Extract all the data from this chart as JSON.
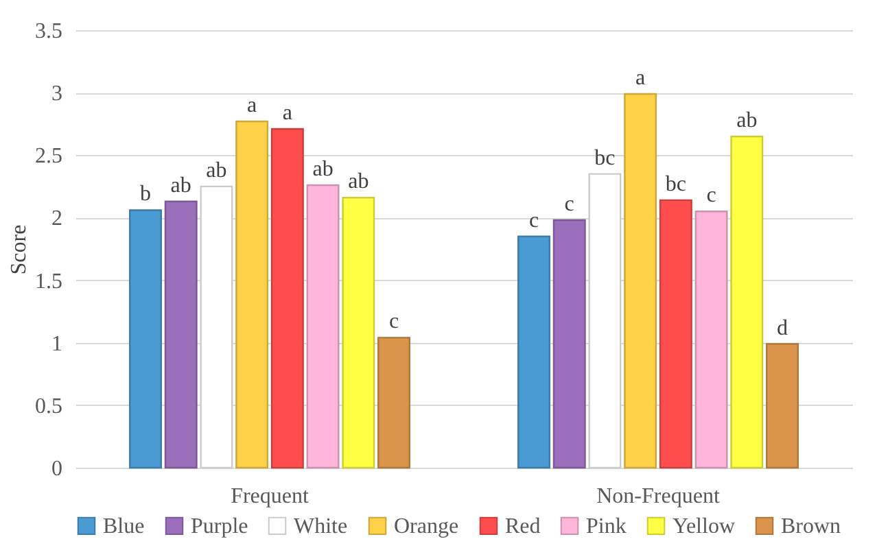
{
  "chart_data": {
    "type": "bar",
    "ylabel": "Score",
    "categories": [
      "Frequent",
      "Non-Frequent"
    ],
    "series": [
      {
        "name": "Blue",
        "color": "#4a9bd4",
        "values": [
          2.06,
          1.85
        ],
        "value_labels": [
          "b",
          "c"
        ]
      },
      {
        "name": "Purple",
        "color": "#9b6fbb",
        "values": [
          2.13,
          1.98
        ],
        "value_labels": [
          "ab",
          "c"
        ]
      },
      {
        "name": "White",
        "color": "#ffffff",
        "values": [
          2.25,
          2.35
        ],
        "value_labels": [
          "ab",
          "bc"
        ]
      },
      {
        "name": "Orange",
        "color": "#ffd149",
        "values": [
          2.77,
          2.99
        ],
        "value_labels": [
          "a",
          "a"
        ]
      },
      {
        "name": "Red",
        "color": "#ff4d4d",
        "values": [
          2.71,
          2.14
        ],
        "value_labels": [
          "a",
          "bc"
        ]
      },
      {
        "name": "Pink",
        "color": "#ffb6da",
        "values": [
          2.26,
          2.05
        ],
        "value_labels": [
          "ab",
          "c"
        ]
      },
      {
        "name": "Yellow",
        "color": "#ffff44",
        "values": [
          2.16,
          2.65
        ],
        "value_labels": [
          "ab",
          "ab"
        ]
      },
      {
        "name": "Brown",
        "color": "#db944b",
        "values": [
          1.04,
          0.99
        ],
        "value_labels": [
          "c",
          "d"
        ]
      }
    ],
    "ylim": [
      0,
      3.5
    ],
    "yticks": [
      0,
      0.5,
      1,
      1.5,
      2,
      2.5,
      3,
      3.5
    ],
    "grid": "y",
    "legend": "bottom"
  }
}
